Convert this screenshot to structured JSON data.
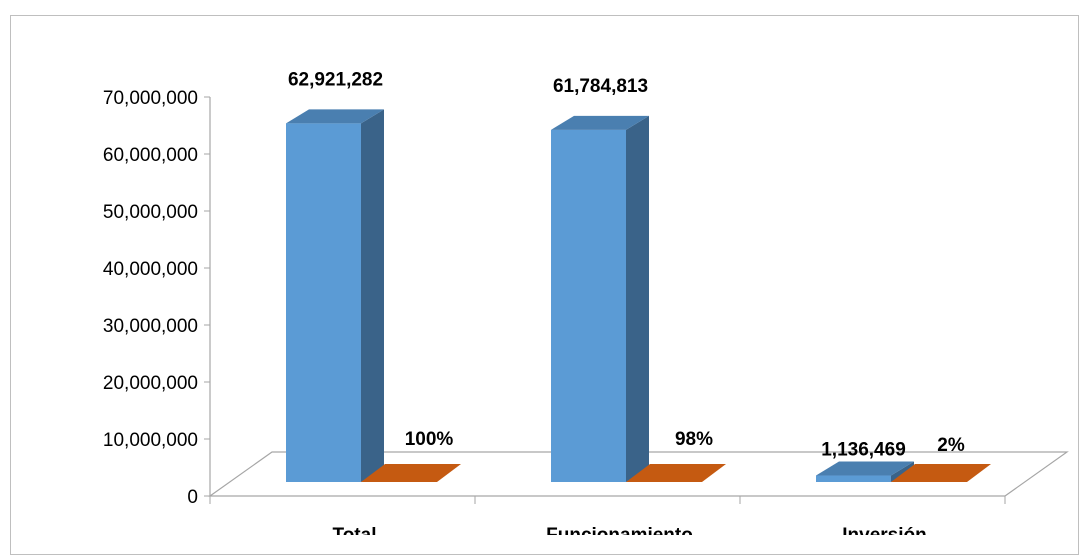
{
  "chart_data": {
    "type": "bar",
    "categories": [
      "Total",
      "Funcionamiento",
      "Inversión"
    ],
    "series": [
      {
        "values": [
          62921282,
          61784813,
          1136469
        ],
        "labels": [
          "62,921,282",
          "61,784,813",
          "1,136,469"
        ]
      },
      {
        "values": [
          100,
          98,
          2
        ],
        "labels": [
          "100%",
          "98%",
          "2%"
        ]
      }
    ],
    "y_ticks": [
      "0",
      "10,000,000",
      "20,000,000",
      "30,000,000",
      "40,000,000",
      "50,000,000",
      "60,000,000",
      "70,000,000"
    ],
    "ylim": [
      0,
      70000000
    ],
    "grid": false,
    "legend": "none",
    "colors": {
      "series1_front": "#5b9bd5",
      "series1_side": "#3a6389",
      "series1_top": "#4a7fb0",
      "series2_front": "#c55a11",
      "series2_top": "#c55a11",
      "floor_stroke": "#a6a6a6"
    }
  }
}
